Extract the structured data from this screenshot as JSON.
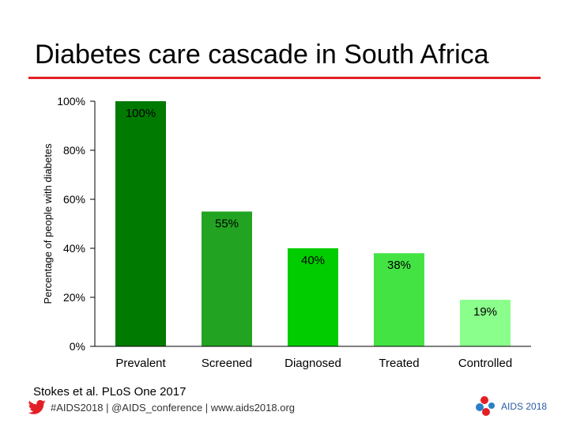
{
  "slide": {
    "title": "Diabetes care cascade in South Africa",
    "source": "Stokes et al. PLoS One 2017",
    "social": "#AIDS2018 | @AIDS_conference | www.aids2018.org",
    "logo_text": "AIDS 2018",
    "accent_color": "#e31f26",
    "icons": [
      "twitter-bird-icon",
      "aids2018-logo"
    ]
  },
  "chart_data": {
    "type": "bar",
    "title": "",
    "xlabel": "",
    "ylabel": "Percentage of people with diabetes",
    "categories": [
      "Prevalent",
      "Screened",
      "Diagnosed",
      "Treated",
      "Controlled"
    ],
    "values": [
      100,
      55,
      40,
      38,
      19
    ],
    "data_labels": [
      "100%",
      "55%",
      "40%",
      "38%",
      "19%"
    ],
    "colors": [
      "#007a00",
      "#22a422",
      "#00cc00",
      "#44e344",
      "#8bff8b"
    ],
    "ylim": [
      0,
      100
    ],
    "yticks": [
      0,
      20,
      40,
      60,
      80,
      100
    ],
    "ytick_labels": [
      "0%",
      "20%",
      "40%",
      "60%",
      "80%",
      "100%"
    ],
    "grid": false,
    "legend": "none"
  }
}
